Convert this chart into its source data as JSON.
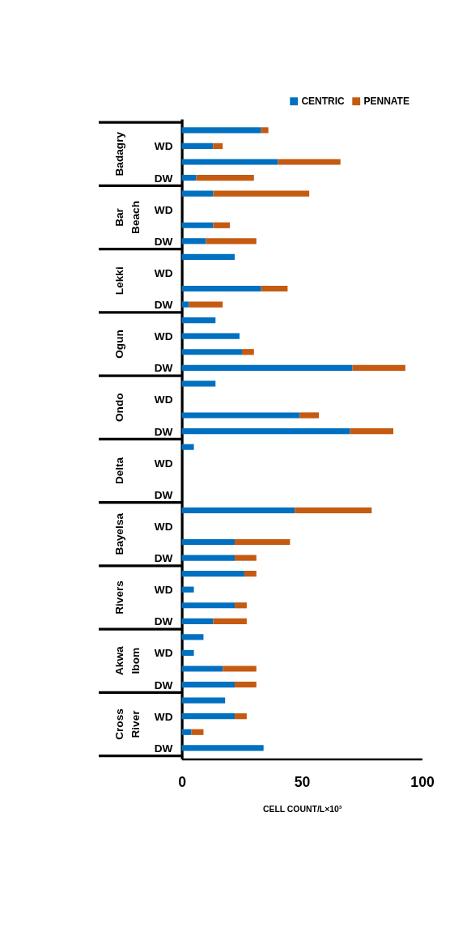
{
  "chart_data": {
    "type": "bar",
    "orientation": "horizontal",
    "stacked": true,
    "categories": [
      null,
      "WD",
      null,
      "DW",
      null,
      "WD",
      null,
      "DW",
      null,
      "WD",
      null,
      "DW",
      null,
      "WD",
      null,
      "DW",
      null,
      "WD",
      null,
      "DW",
      null,
      "WD",
      null,
      "DW",
      null,
      "WD",
      null,
      "DW",
      null,
      "WD",
      null,
      "DW",
      null,
      "WD",
      null,
      "DW",
      null,
      "WD",
      null,
      "DW"
    ],
    "series": [
      {
        "name": "CENTRIC",
        "color": "#0070c0",
        "values": [
          33,
          13,
          40,
          6,
          13,
          null,
          13,
          10,
          22,
          null,
          33,
          3,
          14,
          24,
          25,
          71,
          14,
          null,
          49,
          70,
          5,
          null,
          null,
          null,
          47,
          null,
          22,
          22,
          26,
          5,
          22,
          13,
          9,
          5,
          17,
          22,
          18,
          22,
          4,
          34
        ]
      },
      {
        "name": "PENNATE",
        "color": "#c55a11",
        "values": [
          3,
          4,
          26,
          24,
          40,
          null,
          7,
          21,
          null,
          null,
          11,
          14,
          null,
          null,
          5,
          22,
          null,
          null,
          8,
          18,
          null,
          null,
          null,
          null,
          32,
          null,
          23,
          9,
          5,
          null,
          5,
          14,
          null,
          null,
          14,
          9,
          null,
          5,
          5,
          null
        ]
      }
    ],
    "annotations": [
      "Badagry",
      "Bar Beach",
      "Lekki",
      "Ogun",
      "Ondo",
      "Delta",
      "Bayelsa",
      "Rivers",
      "Akwa Ibom",
      "Cross River"
    ],
    "xlabel": "CELL COUNT/L×10³",
    "xlim": [
      0,
      100
    ],
    "xticks": [
      0,
      50,
      100
    ],
    "legend": "top right",
    "grid": false
  }
}
